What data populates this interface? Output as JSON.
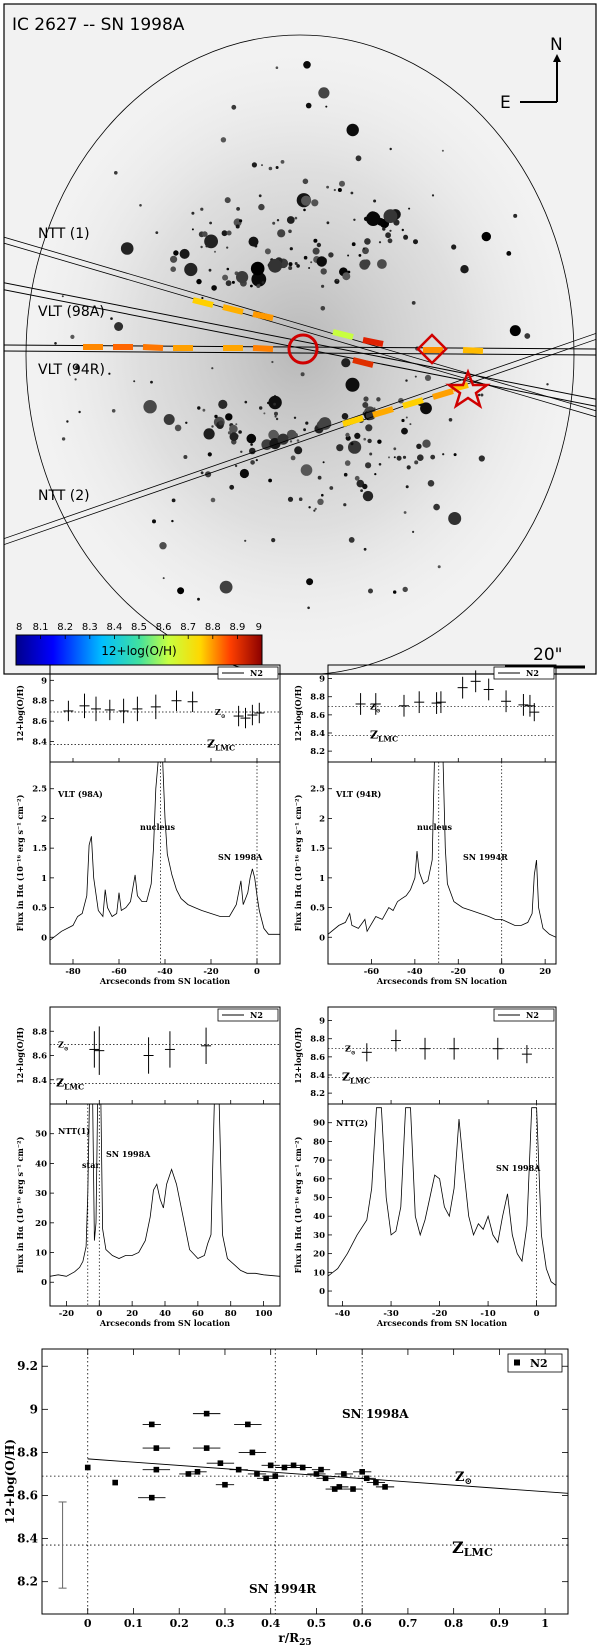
{
  "image_panel": {
    "title": "IC 2627 -- SN 1998A",
    "compass_n": "N",
    "compass_e": "E",
    "slits": [
      {
        "label": "NTT (1)"
      },
      {
        "label": "VLT (98A)"
      },
      {
        "label": "VLT (94R)"
      },
      {
        "label": "NTT (2)"
      }
    ],
    "scalebar_label": "20\"",
    "colorbar": {
      "ticks": [
        "8",
        "8.1",
        "8.2",
        "8.3",
        "8.4",
        "8.5",
        "8.6",
        "8.7",
        "8.8",
        "8.9",
        "9"
      ],
      "label": "12+log(O/H)",
      "min": 8,
      "max": 9
    }
  },
  "common": {
    "legend": "N2",
    "zsun_label": "Z",
    "zsun_sub": "⊙",
    "zlmc_label": "Z",
    "zlmc_sub": "LMC",
    "abund_ylabel": "12+log(O/H)",
    "flux_ylabel": "Flux in Hα (10⁻¹⁶ erg s⁻¹ cm⁻²)",
    "xlabel": "Arcseconds from SN location",
    "zsun_value": 8.69,
    "zlmc_value": 8.37
  },
  "chart_data": [
    {
      "id": "vlt98a",
      "type": "line",
      "slit_label": "VLT (98A)",
      "nucleus_label": "nucleus",
      "sn_label": "SN 1998A",
      "x_ticks": [
        -80,
        -60,
        -40,
        -20,
        0
      ],
      "xlim": [
        -90,
        10
      ],
      "flux_ticks": [
        0,
        0.5,
        1,
        1.5,
        2,
        2.5
      ],
      "flux_ylim": [
        -0.45,
        2.95
      ],
      "abund_ticks": [
        8.4,
        8.6,
        8.8,
        9
      ],
      "abund_ylim": [
        8.2,
        9.15
      ],
      "nucleus_x": -42,
      "sn_x": 0,
      "abundance": [
        {
          "x": -82,
          "y": 8.7,
          "err": 0.1
        },
        {
          "x": -75,
          "y": 8.75,
          "err": 0.12
        },
        {
          "x": -70,
          "y": 8.72,
          "err": 0.12
        },
        {
          "x": -64,
          "y": 8.71,
          "err": 0.1
        },
        {
          "x": -58,
          "y": 8.7,
          "err": 0.12
        },
        {
          "x": -52,
          "y": 8.72,
          "err": 0.12
        },
        {
          "x": -44,
          "y": 8.74,
          "err": 0.12
        },
        {
          "x": -35,
          "y": 8.8,
          "err": 0.1
        },
        {
          "x": -28,
          "y": 8.79,
          "err": 0.1
        },
        {
          "x": -8,
          "y": 8.65,
          "err": 0.1
        },
        {
          "x": -5,
          "y": 8.63,
          "err": 0.1
        },
        {
          "x": -2,
          "y": 8.66,
          "err": 0.1
        },
        {
          "x": 1,
          "y": 8.68,
          "err": 0.1
        }
      ],
      "flux": [
        [
          -90,
          -0.05
        ],
        [
          -85,
          0.1
        ],
        [
          -80,
          0.2
        ],
        [
          -78,
          0.35
        ],
        [
          -76,
          0.4
        ],
        [
          -74,
          0.7
        ],
        [
          -73,
          1.55
        ],
        [
          -72,
          1.7
        ],
        [
          -71,
          1.0
        ],
        [
          -69,
          0.45
        ],
        [
          -67,
          0.35
        ],
        [
          -66,
          0.8
        ],
        [
          -65,
          0.5
        ],
        [
          -63,
          0.35
        ],
        [
          -61,
          0.4
        ],
        [
          -60,
          0.75
        ],
        [
          -59,
          0.45
        ],
        [
          -57,
          0.5
        ],
        [
          -55,
          0.6
        ],
        [
          -53,
          1.05
        ],
        [
          -52,
          0.7
        ],
        [
          -50,
          0.6
        ],
        [
          -48,
          0.6
        ],
        [
          -46,
          0.9
        ],
        [
          -45,
          1.5
        ],
        [
          -44,
          2.5
        ],
        [
          -43,
          2.95
        ],
        [
          -41,
          2.95
        ],
        [
          -40,
          2.0
        ],
        [
          -39,
          1.4
        ],
        [
          -37,
          1.05
        ],
        [
          -35,
          0.8
        ],
        [
          -33,
          0.65
        ],
        [
          -30,
          0.55
        ],
        [
          -27,
          0.5
        ],
        [
          -24,
          0.45
        ],
        [
          -20,
          0.4
        ],
        [
          -16,
          0.35
        ],
        [
          -12,
          0.35
        ],
        [
          -9,
          0.55
        ],
        [
          -7,
          0.95
        ],
        [
          -6,
          0.55
        ],
        [
          -4,
          0.75
        ],
        [
          -3,
          1.0
        ],
        [
          -2,
          1.15
        ],
        [
          -1,
          1.0
        ],
        [
          0,
          0.7
        ],
        [
          1,
          0.45
        ],
        [
          3,
          0.15
        ],
        [
          5,
          0.05
        ],
        [
          8,
          0.05
        ],
        [
          10,
          0.05
        ]
      ]
    },
    {
      "id": "vlt94r",
      "type": "line",
      "slit_label": "VLT (94R)",
      "nucleus_label": "nucleus",
      "sn_label": "SN 1994R",
      "x_ticks": [
        -60,
        -40,
        -20,
        0,
        20
      ],
      "xlim": [
        -80,
        25
      ],
      "flux_ticks": [
        0,
        0.5,
        1,
        1.5,
        2,
        2.5
      ],
      "flux_ylim": [
        -0.45,
        2.95
      ],
      "abund_ticks": [
        8.2,
        8.4,
        8.6,
        8.8,
        9
      ],
      "abund_ylim": [
        8.08,
        9.15
      ],
      "nucleus_x": -29,
      "sn_x": 0,
      "abundance": [
        {
          "x": -65,
          "y": 8.72,
          "err": 0.12
        },
        {
          "x": -58,
          "y": 8.72,
          "err": 0.12
        },
        {
          "x": -45,
          "y": 8.7,
          "err": 0.12
        },
        {
          "x": -38,
          "y": 8.74,
          "err": 0.12
        },
        {
          "x": -30,
          "y": 8.73,
          "err": 0.12
        },
        {
          "x": -28,
          "y": 8.74,
          "err": 0.12
        },
        {
          "x": -18,
          "y": 8.9,
          "err": 0.12
        },
        {
          "x": -12,
          "y": 8.97,
          "err": 0.12
        },
        {
          "x": -6,
          "y": 8.88,
          "err": 0.12
        },
        {
          "x": 2,
          "y": 8.75,
          "err": 0.12
        },
        {
          "x": 10,
          "y": 8.71,
          "err": 0.12
        },
        {
          "x": 13,
          "y": 8.7,
          "err": 0.12
        },
        {
          "x": 15,
          "y": 8.63,
          "err": 0.1
        }
      ],
      "flux": [
        [
          -80,
          0.05
        ],
        [
          -75,
          0.2
        ],
        [
          -72,
          0.25
        ],
        [
          -70,
          0.4
        ],
        [
          -69,
          0.2
        ],
        [
          -66,
          0.15
        ],
        [
          -63,
          0.3
        ],
        [
          -62,
          0.1
        ],
        [
          -58,
          0.35
        ],
        [
          -55,
          0.3
        ],
        [
          -52,
          0.5
        ],
        [
          -50,
          0.45
        ],
        [
          -48,
          0.6
        ],
        [
          -46,
          0.65
        ],
        [
          -44,
          0.7
        ],
        [
          -42,
          0.8
        ],
        [
          -40,
          1.0
        ],
        [
          -39,
          1.45
        ],
        [
          -38,
          1.1
        ],
        [
          -36,
          0.9
        ],
        [
          -34,
          0.95
        ],
        [
          -32,
          1.3
        ],
        [
          -31,
          2.95
        ],
        [
          -27,
          2.95
        ],
        [
          -26,
          1.5
        ],
        [
          -25,
          0.9
        ],
        [
          -22,
          0.6
        ],
        [
          -18,
          0.5
        ],
        [
          -14,
          0.45
        ],
        [
          -10,
          0.4
        ],
        [
          -6,
          0.35
        ],
        [
          -3,
          0.3
        ],
        [
          0,
          0.3
        ],
        [
          3,
          0.25
        ],
        [
          6,
          0.2
        ],
        [
          9,
          0.2
        ],
        [
          12,
          0.25
        ],
        [
          14,
          0.4
        ],
        [
          15,
          1.05
        ],
        [
          16,
          1.3
        ],
        [
          17,
          0.5
        ],
        [
          19,
          0.15
        ],
        [
          22,
          0.05
        ],
        [
          25,
          0.0
        ]
      ]
    },
    {
      "id": "ntt1",
      "type": "line",
      "slit_label": "NTT(1)",
      "star_label": "star",
      "sn_label": "SN 1998A",
      "x_ticks": [
        -20,
        0,
        20,
        40,
        60,
        80,
        100
      ],
      "xlim": [
        -30,
        110
      ],
      "flux_ticks": [
        0,
        10,
        20,
        30,
        40,
        50
      ],
      "flux_ylim": [
        -8,
        60
      ],
      "abund_ticks": [
        8.4,
        8.6,
        8.8
      ],
      "abund_ylim": [
        8.2,
        9.0
      ],
      "star_x": -7,
      "sn_x": 0,
      "abundance": [
        {
          "x": -3,
          "y": 8.65,
          "err": 0.15
        },
        {
          "x": 0,
          "y": 8.64,
          "err": 0.2
        },
        {
          "x": 30,
          "y": 8.6,
          "err": 0.15
        },
        {
          "x": 43,
          "y": 8.65,
          "err": 0.15
        },
        {
          "x": 65,
          "y": 8.68,
          "err": 0.15
        }
      ],
      "flux": [
        [
          -30,
          2
        ],
        [
          -25,
          2.5
        ],
        [
          -20,
          2
        ],
        [
          -15,
          3.5
        ],
        [
          -12,
          5
        ],
        [
          -10,
          7
        ],
        [
          -8,
          12
        ],
        [
          -7,
          30
        ],
        [
          -6,
          60
        ],
        [
          -4,
          60
        ],
        [
          -3,
          14
        ],
        [
          -2,
          20
        ],
        [
          -1,
          60
        ],
        [
          1,
          60
        ],
        [
          2,
          18
        ],
        [
          4,
          11
        ],
        [
          8,
          9
        ],
        [
          12,
          8
        ],
        [
          16,
          9
        ],
        [
          20,
          9
        ],
        [
          24,
          10
        ],
        [
          28,
          14
        ],
        [
          31,
          22
        ],
        [
          33,
          31
        ],
        [
          35,
          33
        ],
        [
          37,
          28
        ],
        [
          39,
          25
        ],
        [
          41,
          33
        ],
        [
          44,
          38
        ],
        [
          47,
          33
        ],
        [
          51,
          22
        ],
        [
          55,
          11
        ],
        [
          60,
          8
        ],
        [
          64,
          9
        ],
        [
          66,
          13
        ],
        [
          68,
          16
        ],
        [
          70,
          60
        ],
        [
          73,
          60
        ],
        [
          75,
          16
        ],
        [
          78,
          8
        ],
        [
          82,
          6
        ],
        [
          86,
          4
        ],
        [
          90,
          3
        ],
        [
          95,
          3
        ],
        [
          100,
          2.5
        ],
        [
          110,
          2
        ]
      ]
    },
    {
      "id": "ntt2",
      "type": "line",
      "slit_label": "NTT(2)",
      "sn_label": "SN 1998A",
      "x_ticks": [
        -40,
        -30,
        -20,
        -10,
        0
      ],
      "xlim": [
        -43,
        4
      ],
      "flux_ticks": [
        0,
        10,
        20,
        30,
        40,
        50,
        60,
        70,
        80,
        90
      ],
      "flux_ylim": [
        -8,
        100
      ],
      "abund_ticks": [
        8.2,
        8.4,
        8.6,
        8.8,
        9
      ],
      "abund_ylim": [
        8.08,
        9.15
      ],
      "sn_x": 0,
      "abundance": [
        {
          "x": -35,
          "y": 8.65,
          "err": 0.1
        },
        {
          "x": -29,
          "y": 8.78,
          "err": 0.12
        },
        {
          "x": -23,
          "y": 8.69,
          "err": 0.12
        },
        {
          "x": -17,
          "y": 8.69,
          "err": 0.12
        },
        {
          "x": -8,
          "y": 8.69,
          "err": 0.12
        },
        {
          "x": -2,
          "y": 8.63,
          "err": 0.1
        }
      ],
      "flux": [
        [
          -43,
          8
        ],
        [
          -41,
          12
        ],
        [
          -39,
          20
        ],
        [
          -37,
          30
        ],
        [
          -35,
          38
        ],
        [
          -34,
          55
        ],
        [
          -33,
          98
        ],
        [
          -32,
          98
        ],
        [
          -31,
          50
        ],
        [
          -30,
          30
        ],
        [
          -29,
          32
        ],
        [
          -28,
          45
        ],
        [
          -27,
          98
        ],
        [
          -26,
          98
        ],
        [
          -25,
          40
        ],
        [
          -24,
          30
        ],
        [
          -23,
          38
        ],
        [
          -22,
          50
        ],
        [
          -21,
          62
        ],
        [
          -20,
          60
        ],
        [
          -19,
          45
        ],
        [
          -18,
          40
        ],
        [
          -17,
          55
        ],
        [
          -16,
          92
        ],
        [
          -15,
          65
        ],
        [
          -14,
          40
        ],
        [
          -13,
          30
        ],
        [
          -12,
          36
        ],
        [
          -11,
          33
        ],
        [
          -10,
          40
        ],
        [
          -9,
          30
        ],
        [
          -8,
          26
        ],
        [
          -7,
          40
        ],
        [
          -6,
          52
        ],
        [
          -5,
          30
        ],
        [
          -4,
          20
        ],
        [
          -3,
          16
        ],
        [
          -2,
          35
        ],
        [
          -1,
          98
        ],
        [
          0,
          98
        ],
        [
          1,
          30
        ],
        [
          2,
          12
        ],
        [
          3,
          5
        ],
        [
          4,
          3
        ]
      ]
    },
    {
      "id": "gradient",
      "type": "scatter",
      "legend": "N2",
      "xlabel": "r/R",
      "xlabel_sub": "25",
      "ylabel": "12+log(O/H)",
      "x_ticks": [
        0,
        0.1,
        0.2,
        0.3,
        0.4,
        0.5,
        0.6,
        0.7,
        0.8,
        0.9,
        1
      ],
      "y_ticks": [
        8.2,
        8.4,
        8.6,
        8.8,
        9,
        9.2
      ],
      "xlim": [
        -0.1,
        1.05
      ],
      "ylim": [
        8.05,
        9.28
      ],
      "vlines": [
        0,
        0.41,
        0.6
      ],
      "sn1998a_label": "SN 1998A",
      "sn1994r_label": "SN 1994R",
      "fit": {
        "x0": 0,
        "y0": 8.77,
        "x1": 1.05,
        "y1": 8.61
      },
      "sys_error": {
        "x": -0.055,
        "center": 8.37,
        "half": 0.2
      },
      "points": [
        {
          "x": 0.0,
          "y": 8.73,
          "xerr": 0.0
        },
        {
          "x": 0.06,
          "y": 8.66,
          "xerr": 0.0
        },
        {
          "x": 0.14,
          "y": 8.93,
          "xerr": 0.02
        },
        {
          "x": 0.15,
          "y": 8.82,
          "xerr": 0.03
        },
        {
          "x": 0.15,
          "y": 8.72,
          "xerr": 0.03
        },
        {
          "x": 0.14,
          "y": 8.59,
          "xerr": 0.03
        },
        {
          "x": 0.22,
          "y": 8.7,
          "xerr": 0.02
        },
        {
          "x": 0.24,
          "y": 8.71,
          "xerr": 0.02
        },
        {
          "x": 0.26,
          "y": 8.98,
          "xerr": 0.03
        },
        {
          "x": 0.26,
          "y": 8.82,
          "xerr": 0.03
        },
        {
          "x": 0.29,
          "y": 8.75,
          "xerr": 0.03
        },
        {
          "x": 0.3,
          "y": 8.65,
          "xerr": 0.02
        },
        {
          "x": 0.33,
          "y": 8.72,
          "xerr": 0.02
        },
        {
          "x": 0.35,
          "y": 8.93,
          "xerr": 0.03
        },
        {
          "x": 0.36,
          "y": 8.8,
          "xerr": 0.03
        },
        {
          "x": 0.37,
          "y": 8.7,
          "xerr": 0.02
        },
        {
          "x": 0.39,
          "y": 8.68,
          "xerr": 0.02
        },
        {
          "x": 0.4,
          "y": 8.74,
          "xerr": 0.02
        },
        {
          "x": 0.41,
          "y": 8.69,
          "xerr": 0.02
        },
        {
          "x": 0.43,
          "y": 8.73,
          "xerr": 0.02
        },
        {
          "x": 0.45,
          "y": 8.74,
          "xerr": 0.02
        },
        {
          "x": 0.47,
          "y": 8.73,
          "xerr": 0.02
        },
        {
          "x": 0.5,
          "y": 8.7,
          "xerr": 0.02
        },
        {
          "x": 0.51,
          "y": 8.72,
          "xerr": 0.02
        },
        {
          "x": 0.52,
          "y": 8.68,
          "xerr": 0.02
        },
        {
          "x": 0.54,
          "y": 8.63,
          "xerr": 0.02
        },
        {
          "x": 0.55,
          "y": 8.64,
          "xerr": 0.02
        },
        {
          "x": 0.56,
          "y": 8.7,
          "xerr": 0.02
        },
        {
          "x": 0.58,
          "y": 8.63,
          "xerr": 0.02
        },
        {
          "x": 0.6,
          "y": 8.71,
          "xerr": 0.02
        },
        {
          "x": 0.61,
          "y": 8.68,
          "xerr": 0.02
        },
        {
          "x": 0.63,
          "y": 8.66,
          "xerr": 0.02
        },
        {
          "x": 0.65,
          "y": 8.64,
          "xerr": 0.02
        }
      ]
    }
  ]
}
